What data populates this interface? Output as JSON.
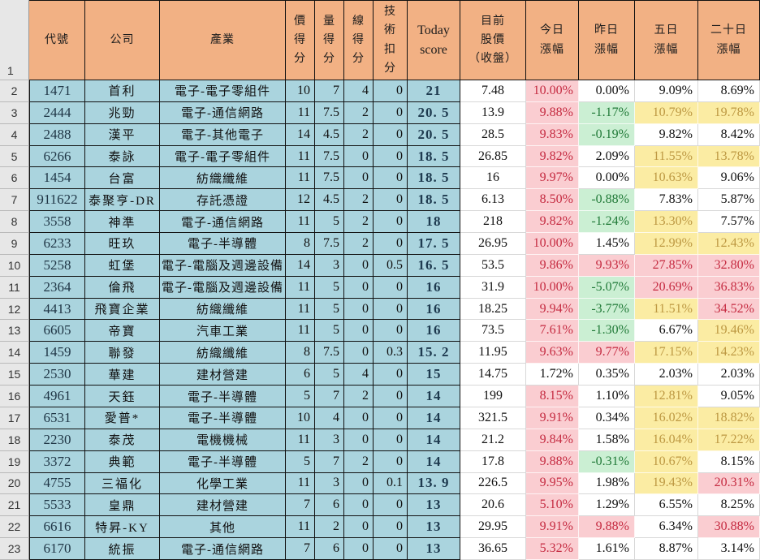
{
  "colors": {
    "header_fill": "#F2B184",
    "data_fill_blue": "#AAD4DE",
    "row_header_fill": "#E7E7E7",
    "up_fill_pink": "#FACDD1",
    "up_text_red": "#C52B41",
    "down_fill_green": "#CBEFD3",
    "down_text_green": "#217A38",
    "mid_fill_yellow": "#FBECA3",
    "mid_text_gold": "#BD9842",
    "score_text_navy": "#1E3A4F",
    "border_black": "#111111"
  },
  "table": {
    "corner_label": "1",
    "columns": [
      {
        "key": "code",
        "lines": [
          "代號"
        ]
      },
      {
        "key": "company",
        "lines": [
          "公司"
        ]
      },
      {
        "key": "industry",
        "lines": [
          "產業"
        ]
      },
      {
        "key": "price_score",
        "lines": [
          "價",
          "得",
          "分"
        ]
      },
      {
        "key": "volume_score",
        "lines": [
          "量",
          "得",
          "分"
        ]
      },
      {
        "key": "line_score",
        "lines": [
          "線",
          "得",
          "分"
        ]
      },
      {
        "key": "tech_deduction",
        "lines": [
          "技",
          "術",
          "扣",
          "分"
        ]
      },
      {
        "key": "today_score",
        "lines": [
          "Today",
          "score"
        ],
        "latin": true
      },
      {
        "key": "price",
        "lines": [
          "目前",
          "股價",
          "（收盤）"
        ]
      },
      {
        "key": "today_change",
        "lines": [
          "今日",
          "漲幅"
        ]
      },
      {
        "key": "yesterday_change",
        "lines": [
          "昨日",
          "漲幅"
        ]
      },
      {
        "key": "five_day_change",
        "lines": [
          "五日",
          "漲幅"
        ]
      },
      {
        "key": "twenty_day_change",
        "lines": [
          "二十日",
          "漲幅"
        ]
      }
    ],
    "rows": [
      {
        "n": "2",
        "code": "1471",
        "company": "首利",
        "industry": "電子-電子零組件",
        "ps": "10",
        "vs": "7",
        "ls": "4",
        "td": "0",
        "ts": "21",
        "price": "7.48",
        "chg": [
          [
            "10.00%",
            "pink"
          ],
          [
            "0.00%",
            "white"
          ],
          [
            "9.09%",
            "white"
          ],
          [
            "8.69%",
            "white"
          ]
        ]
      },
      {
        "n": "3",
        "code": "2444",
        "company": "兆勁",
        "industry": "電子-通信網路",
        "ps": "11",
        "vs": "7.5",
        "ls": "2",
        "td": "0",
        "ts": "20. 5",
        "price": "13.9",
        "chg": [
          [
            "9.88%",
            "pink"
          ],
          [
            "-1.17%",
            "green"
          ],
          [
            "10.79%",
            "yellow"
          ],
          [
            "19.78%",
            "yellow"
          ]
        ]
      },
      {
        "n": "4",
        "code": "2488",
        "company": "漢平",
        "industry": "電子-其他電子",
        "ps": "14",
        "vs": "4.5",
        "ls": "2",
        "td": "0",
        "ts": "20. 5",
        "price": "28.5",
        "chg": [
          [
            "9.83%",
            "pink"
          ],
          [
            "-0.19%",
            "green"
          ],
          [
            "9.82%",
            "white"
          ],
          [
            "8.42%",
            "white"
          ]
        ]
      },
      {
        "n": "5",
        "code": "6266",
        "company": "泰詠",
        "industry": "電子-電子零組件",
        "ps": "11",
        "vs": "7.5",
        "ls": "0",
        "td": "0",
        "ts": "18. 5",
        "price": "26.85",
        "chg": [
          [
            "9.82%",
            "pink"
          ],
          [
            "2.09%",
            "white"
          ],
          [
            "11.55%",
            "yellow"
          ],
          [
            "13.78%",
            "yellow"
          ]
        ]
      },
      {
        "n": "6",
        "code": "1454",
        "company": "台富",
        "industry": "紡織纖維",
        "ps": "11",
        "vs": "7.5",
        "ls": "0",
        "td": "0",
        "ts": "18. 5",
        "price": "16",
        "chg": [
          [
            "9.97%",
            "pink"
          ],
          [
            "0.00%",
            "white"
          ],
          [
            "10.63%",
            "yellow"
          ],
          [
            "9.06%",
            "white"
          ]
        ]
      },
      {
        "n": "7",
        "code": "911622",
        "company": "泰聚亨-DR",
        "industry": "存託憑證",
        "ps": "12",
        "vs": "4.5",
        "ls": "2",
        "td": "0",
        "ts": "18. 5",
        "price": "6.13",
        "chg": [
          [
            "8.50%",
            "pink"
          ],
          [
            "-0.88%",
            "green"
          ],
          [
            "7.83%",
            "white"
          ],
          [
            "5.87%",
            "white"
          ]
        ]
      },
      {
        "n": "8",
        "code": "3558",
        "company": "神準",
        "industry": "電子-通信網路",
        "ps": "11",
        "vs": "5",
        "ls": "2",
        "td": "0",
        "ts": "18",
        "price": "218",
        "chg": [
          [
            "9.82%",
            "pink"
          ],
          [
            "-1.24%",
            "green"
          ],
          [
            "13.30%",
            "yellow"
          ],
          [
            "7.57%",
            "white"
          ]
        ]
      },
      {
        "n": "9",
        "code": "6233",
        "company": "旺玖",
        "industry": "電子-半導體",
        "ps": "8",
        "vs": "7.5",
        "ls": "2",
        "td": "0",
        "ts": "17. 5",
        "price": "26.95",
        "chg": [
          [
            "10.00%",
            "pink"
          ],
          [
            "1.45%",
            "white"
          ],
          [
            "12.99%",
            "yellow"
          ],
          [
            "12.43%",
            "yellow"
          ]
        ]
      },
      {
        "n": "10",
        "code": "5258",
        "company": "虹堡",
        "industry": "電子-電腦及週邊設備",
        "ps": "14",
        "vs": "3",
        "ls": "0",
        "td": "0.5",
        "ts": "16. 5",
        "price": "53.5",
        "chg": [
          [
            "9.86%",
            "pink"
          ],
          [
            "9.93%",
            "pink"
          ],
          [
            "27.85%",
            "pink"
          ],
          [
            "32.80%",
            "pink"
          ]
        ]
      },
      {
        "n": "11",
        "code": "2364",
        "company": "倫飛",
        "industry": "電子-電腦及週邊設備",
        "ps": "11",
        "vs": "5",
        "ls": "0",
        "td": "0",
        "ts": "16",
        "price": "31.9",
        "chg": [
          [
            "10.00%",
            "pink"
          ],
          [
            "-5.07%",
            "green"
          ],
          [
            "20.69%",
            "pink"
          ],
          [
            "36.83%",
            "pink"
          ]
        ]
      },
      {
        "n": "12",
        "code": "4413",
        "company": "飛寶企業",
        "industry": "紡織纖維",
        "ps": "11",
        "vs": "5",
        "ls": "0",
        "td": "0",
        "ts": "16",
        "price": "18.25",
        "chg": [
          [
            "9.94%",
            "pink"
          ],
          [
            "-3.77%",
            "green"
          ],
          [
            "11.51%",
            "yellow"
          ],
          [
            "34.52%",
            "pink"
          ]
        ]
      },
      {
        "n": "13",
        "code": "6605",
        "company": "帝寶",
        "industry": "汽車工業",
        "ps": "11",
        "vs": "5",
        "ls": "0",
        "td": "0",
        "ts": "16",
        "price": "73.5",
        "chg": [
          [
            "7.61%",
            "pink"
          ],
          [
            "-1.30%",
            "green"
          ],
          [
            "6.67%",
            "white"
          ],
          [
            "19.46%",
            "yellow"
          ]
        ]
      },
      {
        "n": "14",
        "code": "1459",
        "company": "聯發",
        "industry": "紡織纖維",
        "ps": "8",
        "vs": "7.5",
        "ls": "0",
        "td": "0.3",
        "ts": "15. 2",
        "price": "11.95",
        "chg": [
          [
            "9.63%",
            "pink"
          ],
          [
            "9.77%",
            "pink"
          ],
          [
            "17.15%",
            "yellow"
          ],
          [
            "14.23%",
            "yellow"
          ]
        ]
      },
      {
        "n": "15",
        "code": "2530",
        "company": "華建",
        "industry": "建材營建",
        "ps": "6",
        "vs": "5",
        "ls": "4",
        "td": "0",
        "ts": "15",
        "price": "14.75",
        "chg": [
          [
            "1.72%",
            "white"
          ],
          [
            "0.35%",
            "white"
          ],
          [
            "2.03%",
            "white"
          ],
          [
            "2.03%",
            "white"
          ]
        ]
      },
      {
        "n": "16",
        "code": "4961",
        "company": "天鈺",
        "industry": "電子-半導體",
        "ps": "5",
        "vs": "7",
        "ls": "2",
        "td": "0",
        "ts": "14",
        "price": "199",
        "chg": [
          [
            "8.15%",
            "pink"
          ],
          [
            "1.10%",
            "white"
          ],
          [
            "12.81%",
            "yellow"
          ],
          [
            "9.05%",
            "white"
          ]
        ]
      },
      {
        "n": "17",
        "code": "6531",
        "company": "愛普*",
        "industry": "電子-半導體",
        "ps": "10",
        "vs": "4",
        "ls": "0",
        "td": "0",
        "ts": "14",
        "price": "321.5",
        "chg": [
          [
            "9.91%",
            "pink"
          ],
          [
            "0.34%",
            "white"
          ],
          [
            "16.02%",
            "yellow"
          ],
          [
            "18.82%",
            "yellow"
          ]
        ]
      },
      {
        "n": "18",
        "code": "2230",
        "company": "泰茂",
        "industry": "電機機械",
        "ps": "11",
        "vs": "3",
        "ls": "0",
        "td": "0",
        "ts": "14",
        "price": "21.2",
        "chg": [
          [
            "9.84%",
            "pink"
          ],
          [
            "1.58%",
            "white"
          ],
          [
            "16.04%",
            "yellow"
          ],
          [
            "17.22%",
            "yellow"
          ]
        ]
      },
      {
        "n": "19",
        "code": "3372",
        "company": "典範",
        "industry": "電子-半導體",
        "ps": "5",
        "vs": "7",
        "ls": "2",
        "td": "0",
        "ts": "14",
        "price": "17.8",
        "chg": [
          [
            "9.88%",
            "pink"
          ],
          [
            "-0.31%",
            "green"
          ],
          [
            "10.67%",
            "yellow"
          ],
          [
            "8.15%",
            "white"
          ]
        ]
      },
      {
        "n": "20",
        "code": "4755",
        "company": "三福化",
        "industry": "化學工業",
        "ps": "11",
        "vs": "3",
        "ls": "0",
        "td": "0.1",
        "ts": "13. 9",
        "price": "226.5",
        "chg": [
          [
            "9.95%",
            "pink"
          ],
          [
            "1.98%",
            "white"
          ],
          [
            "19.43%",
            "yellow"
          ],
          [
            "20.31%",
            "pink"
          ]
        ]
      },
      {
        "n": "21",
        "code": "5533",
        "company": "皇鼎",
        "industry": "建材營建",
        "ps": "7",
        "vs": "6",
        "ls": "0",
        "td": "0",
        "ts": "13",
        "price": "20.6",
        "chg": [
          [
            "5.10%",
            "pink"
          ],
          [
            "1.29%",
            "white"
          ],
          [
            "6.55%",
            "white"
          ],
          [
            "8.25%",
            "white"
          ]
        ]
      },
      {
        "n": "22",
        "code": "6616",
        "company": "特昇-KY",
        "industry": "其他",
        "ps": "11",
        "vs": "2",
        "ls": "0",
        "td": "0",
        "ts": "13",
        "price": "29.95",
        "chg": [
          [
            "9.91%",
            "pink"
          ],
          [
            "9.88%",
            "pink"
          ],
          [
            "6.34%",
            "white"
          ],
          [
            "30.88%",
            "pink"
          ]
        ]
      },
      {
        "n": "23",
        "code": "6170",
        "company": "統振",
        "industry": "電子-通信網路",
        "ps": "7",
        "vs": "6",
        "ls": "0",
        "td": "0",
        "ts": "13",
        "price": "36.65",
        "chg": [
          [
            "5.32%",
            "pink"
          ],
          [
            "1.61%",
            "white"
          ],
          [
            "8.87%",
            "white"
          ],
          [
            "3.14%",
            "white"
          ]
        ]
      }
    ]
  }
}
